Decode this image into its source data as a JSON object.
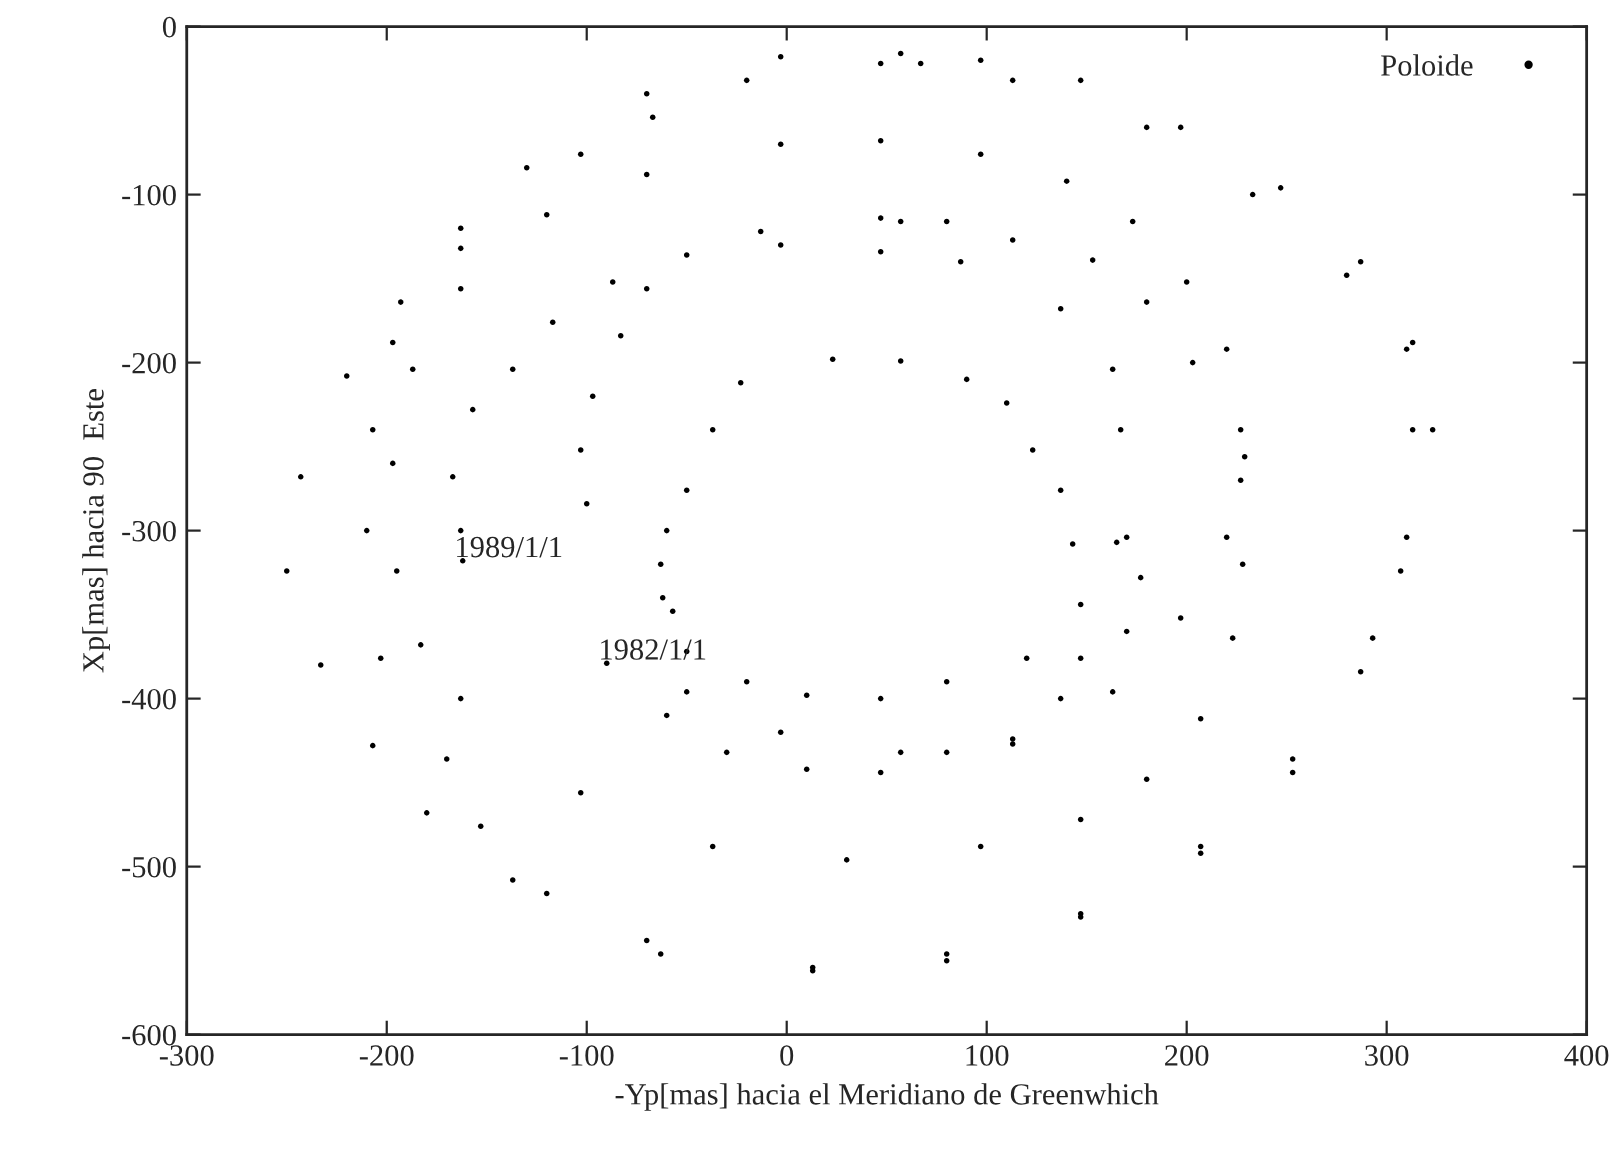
{
  "chart_data": {
    "type": "scatter",
    "xlabel": "-Yp[mas] hacia el Meridiano de Greenwhich",
    "ylabel": "Xp[mas] hacia 90  Este",
    "xlim": [
      -300,
      400
    ],
    "ylim": [
      -600,
      0
    ],
    "xticks": [
      -300,
      -200,
      -100,
      0,
      100,
      200,
      300,
      400
    ],
    "yticks": [
      -600,
      -500,
      -400,
      -300,
      -200,
      -100,
      0
    ],
    "grid": false,
    "legend": "top right",
    "annotations": [
      {
        "text": "1989/1/1",
        "x": -162,
        "y": -318
      },
      {
        "text": "1982/1/1",
        "x": -90,
        "y": -379
      }
    ],
    "series": [
      {
        "name": "Poloide",
        "color": "#000000",
        "x": [
          -90,
          -60,
          -30,
          10,
          47,
          113,
          163,
          197,
          220,
          229,
          220,
          200,
          173,
          140,
          97,
          47,
          -3,
          -70,
          -120,
          -163,
          -187,
          -197,
          -195,
          -183,
          -163,
          -103,
          -37,
          30,
          97,
          147,
          180,
          207,
          223,
          228,
          227,
          227,
          203,
          180,
          153,
          113,
          80,
          47,
          57,
          -13,
          -50,
          -87,
          -117,
          -137,
          -157,
          -167,
          -163,
          -162
        ],
        "values": [
          -379,
          -410,
          -432,
          -442,
          -444,
          -427,
          -396,
          -352,
          -304,
          -256,
          -192,
          -152,
          -116,
          -92,
          -76,
          -68,
          -70,
          -88,
          -112,
          -156,
          -204,
          -260,
          -324,
          -368,
          -400,
          -456,
          -488,
          -496,
          -488,
          -472,
          -448,
          -412,
          -364,
          -320,
          -270,
          -240,
          -200,
          -164,
          -139,
          -127,
          -116,
          -114,
          -116,
          -122,
          -136,
          -152,
          -176,
          -204,
          -228,
          -268,
          -300,
          -318
        ]
      },
      {
        "color": "#000000",
        "x": [
          -3,
          -70,
          -83,
          -97,
          -103,
          -100,
          -63,
          -57,
          -50,
          -3,
          57,
          80,
          113,
          137,
          147,
          170,
          177,
          170,
          165,
          167,
          163,
          137,
          87,
          47
        ],
        "values": [
          -130,
          -156,
          -184,
          -220,
          -252,
          -284,
          -320,
          -348,
          -396,
          -420,
          -432,
          -432,
          -424,
          -400,
          -376,
          -360,
          -328,
          -304,
          -307,
          -240,
          -204,
          -168,
          -140,
          -134
        ]
      },
      {
        "color": "#000000",
        "x": [
          57,
          90,
          110,
          123,
          137,
          143,
          147,
          120,
          80,
          47,
          10,
          -20,
          -50,
          -62,
          -60,
          -50,
          -37,
          -23,
          23
        ],
        "values": [
          -199,
          -210,
          -224,
          -252,
          -276,
          -308,
          -344,
          -376,
          -390,
          -400,
          -398,
          -390,
          -372,
          -340,
          -300,
          -276,
          -240,
          -212,
          -198
        ]
      },
      {
        "color": "#000000",
        "x": [
          57,
          -3,
          -70,
          -130,
          -163,
          -193,
          -220,
          -243,
          -250,
          -233,
          -207,
          -180,
          -137,
          -70,
          13,
          80,
          147,
          207,
          253,
          287,
          307,
          323,
          313,
          287,
          247,
          197,
          147,
          97,
          47,
          -20,
          -67,
          -103,
          -163,
          -197,
          -207,
          -210,
          -203,
          -170,
          -153,
          -120,
          -63,
          13,
          80,
          147,
          207,
          253,
          293,
          310,
          313,
          310,
          280,
          233,
          180,
          113,
          67
        ],
        "values": [
          -16,
          -18,
          -40,
          -84,
          -120,
          -164,
          -208,
          -268,
          -324,
          -380,
          -428,
          -468,
          -508,
          -544,
          -562,
          -556,
          -528,
          -488,
          -436,
          -384,
          -324,
          -240,
          -188,
          -140,
          -96,
          -60,
          -32,
          -20,
          -22,
          -32,
          -54,
          -76,
          -132,
          -188,
          -240,
          -300,
          -376,
          -436,
          -476,
          -516,
          -552,
          -560,
          -552,
          -530,
          -492,
          -444,
          -364,
          -304,
          -240,
          -192,
          -148,
          -100,
          -60,
          -32,
          -22
        ]
      }
    ]
  }
}
